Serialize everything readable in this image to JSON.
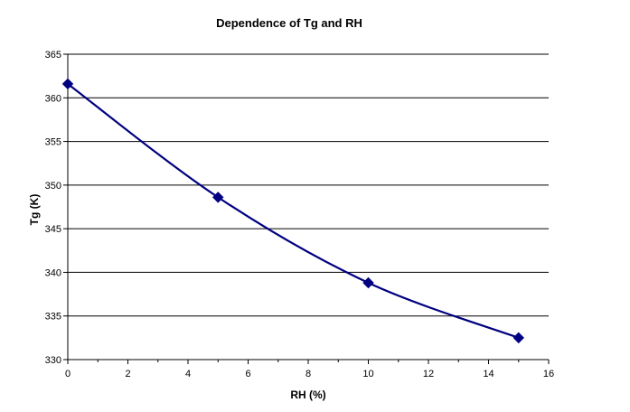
{
  "chart_data": {
    "type": "line",
    "title": "Dependence of Tg and RH",
    "xlabel": "RH (%)",
    "ylabel": "Tg (K)",
    "xlim": [
      0,
      16
    ],
    "ylim": [
      330,
      365
    ],
    "xticks": [
      0,
      2,
      4,
      6,
      8,
      10,
      12,
      14,
      16
    ],
    "yticks": [
      330,
      335,
      340,
      345,
      350,
      355,
      360,
      365
    ],
    "grid": "horizontal",
    "legend": "none",
    "series": [
      {
        "x": [
          0,
          5,
          10,
          15
        ],
        "y": [
          361.6,
          348.6,
          338.8,
          332.5
        ],
        "color": "#000080",
        "marker": "diamond",
        "smooth": true
      }
    ]
  }
}
